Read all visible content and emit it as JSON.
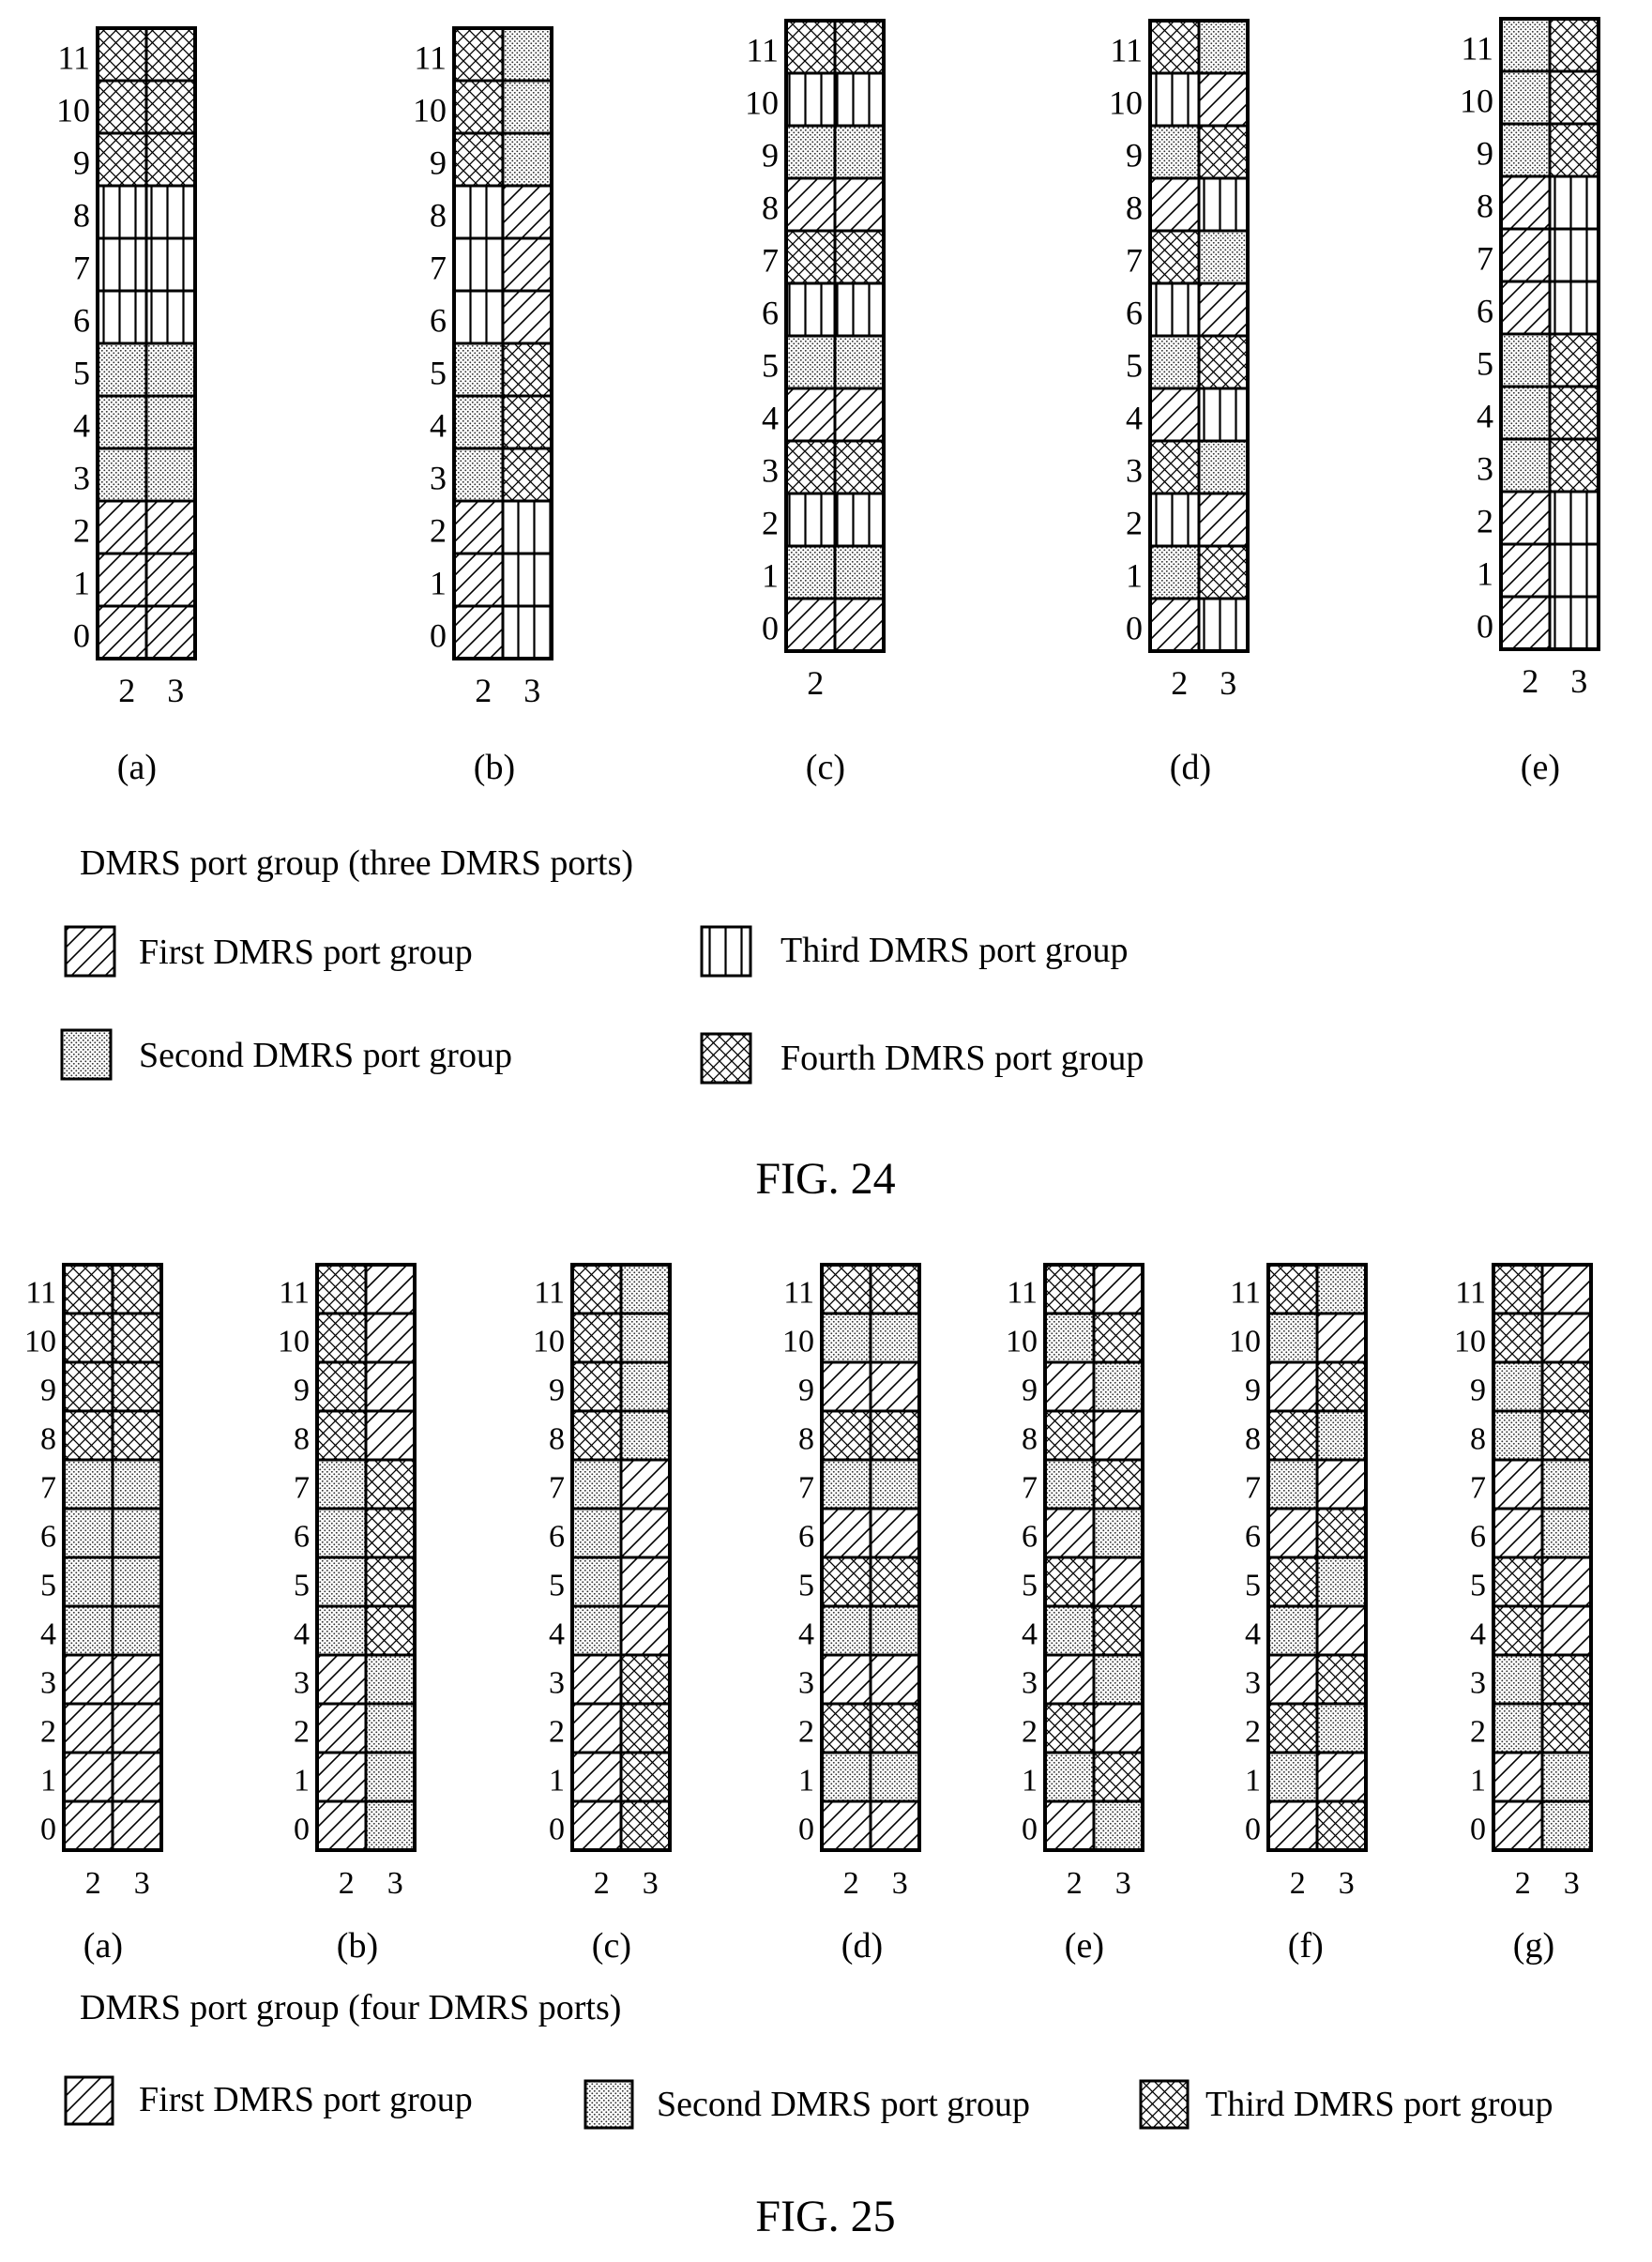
{
  "fig24": {
    "caption": "FIG. 24",
    "section_title": "DMRS port group (three DMRS ports)",
    "legend": [
      {
        "key": "A",
        "label": "First DMRS port group"
      },
      {
        "key": "C",
        "label": "Third DMRS port group"
      },
      {
        "key": "B",
        "label": "Second DMRS port group"
      },
      {
        "key": "D",
        "label": "Fourth DMRS port group"
      }
    ],
    "panels": [
      {
        "label": "(a)",
        "x_labels": [
          "2",
          "3"
        ],
        "col1": [
          "A",
          "A",
          "A",
          "B",
          "B",
          "B",
          "C",
          "C",
          "C",
          "D",
          "D",
          "D"
        ],
        "col2": [
          "A",
          "A",
          "A",
          "B",
          "B",
          "B",
          "C",
          "C",
          "C",
          "D",
          "D",
          "D"
        ]
      },
      {
        "label": "(b)",
        "x_labels": [
          "2",
          "3"
        ],
        "col1": [
          "A",
          "A",
          "A",
          "B",
          "B",
          "B",
          "C",
          "C",
          "C",
          "D",
          "D",
          "D"
        ],
        "col2": [
          "C",
          "C",
          "C",
          "D",
          "D",
          "D",
          "A",
          "A",
          "A",
          "B",
          "B",
          "B"
        ]
      },
      {
        "label": "(c)",
        "x_labels": [
          "2"
        ],
        "col1": [
          "A",
          "B",
          "C",
          "D",
          "A",
          "B",
          "C",
          "D",
          "A",
          "B",
          "C",
          "D"
        ],
        "col2": [
          "A",
          "B",
          "C",
          "D",
          "A",
          "B",
          "C",
          "D",
          "A",
          "B",
          "C",
          "D"
        ]
      },
      {
        "label": "(d)",
        "x_labels": [
          "2",
          "3"
        ],
        "col1": [
          "A",
          "B",
          "C",
          "D",
          "A",
          "B",
          "C",
          "D",
          "A",
          "B",
          "C",
          "D"
        ],
        "col2": [
          "C",
          "D",
          "A",
          "B",
          "C",
          "D",
          "A",
          "B",
          "C",
          "D",
          "A",
          "B"
        ]
      },
      {
        "label": "(e)",
        "x_labels": [
          "2",
          "3"
        ],
        "col1": [
          "A",
          "A",
          "A",
          "B",
          "B",
          "B",
          "A",
          "A",
          "A",
          "B",
          "B",
          "B"
        ],
        "col2": [
          "C",
          "C",
          "C",
          "D",
          "D",
          "D",
          "C",
          "C",
          "C",
          "D",
          "D",
          "D"
        ]
      }
    ]
  },
  "fig25": {
    "caption": "FIG. 25",
    "section_title": "DMRS port group (four DMRS ports)",
    "legend": [
      {
        "key": "A",
        "label": "First DMRS port group"
      },
      {
        "key": "B",
        "label": "Second DMRS port group"
      },
      {
        "key": "D",
        "label": "Third DMRS port group"
      }
    ],
    "panels": [
      {
        "label": "(a)",
        "x_labels": [
          "2",
          "3"
        ],
        "col1": [
          "A",
          "A",
          "A",
          "A",
          "B",
          "B",
          "B",
          "B",
          "D",
          "D",
          "D",
          "D"
        ],
        "col2": [
          "A",
          "A",
          "A",
          "A",
          "B",
          "B",
          "B",
          "B",
          "D",
          "D",
          "D",
          "D"
        ]
      },
      {
        "label": "(b)",
        "x_labels": [
          "2",
          "3"
        ],
        "col1": [
          "A",
          "A",
          "A",
          "A",
          "B",
          "B",
          "B",
          "B",
          "D",
          "D",
          "D",
          "D"
        ],
        "col2": [
          "B",
          "B",
          "B",
          "B",
          "D",
          "D",
          "D",
          "D",
          "A",
          "A",
          "A",
          "A"
        ]
      },
      {
        "label": "(c)",
        "x_labels": [
          "2",
          "3"
        ],
        "col1": [
          "A",
          "A",
          "A",
          "A",
          "B",
          "B",
          "B",
          "B",
          "D",
          "D",
          "D",
          "D"
        ],
        "col2": [
          "D",
          "D",
          "D",
          "D",
          "A",
          "A",
          "A",
          "A",
          "B",
          "B",
          "B",
          "B"
        ]
      },
      {
        "label": "(d)",
        "x_labels": [
          "2",
          "3"
        ],
        "col1": [
          "A",
          "B",
          "D",
          "A",
          "B",
          "D",
          "A",
          "B",
          "D",
          "A",
          "B",
          "D"
        ],
        "col2": [
          "A",
          "B",
          "D",
          "A",
          "B",
          "D",
          "A",
          "B",
          "D",
          "A",
          "B",
          "D"
        ]
      },
      {
        "label": "(e)",
        "x_labels": [
          "2",
          "3"
        ],
        "col1": [
          "A",
          "B",
          "D",
          "A",
          "B",
          "D",
          "A",
          "B",
          "D",
          "A",
          "B",
          "D"
        ],
        "col2": [
          "B",
          "D",
          "A",
          "B",
          "D",
          "A",
          "B",
          "D",
          "A",
          "B",
          "D",
          "A"
        ]
      },
      {
        "label": "(f)",
        "x_labels": [
          "2",
          "3"
        ],
        "col1": [
          "A",
          "B",
          "D",
          "A",
          "B",
          "D",
          "A",
          "B",
          "D",
          "A",
          "B",
          "D"
        ],
        "col2": [
          "D",
          "A",
          "B",
          "D",
          "A",
          "B",
          "D",
          "A",
          "B",
          "D",
          "A",
          "B"
        ]
      },
      {
        "label": "(g)",
        "x_labels": [
          "2",
          "3"
        ],
        "col1": [
          "A",
          "A",
          "B",
          "B",
          "D",
          "D",
          "A",
          "A",
          "B",
          "B",
          "D",
          "D"
        ],
        "col2": [
          "B",
          "B",
          "D",
          "D",
          "A",
          "A",
          "B",
          "B",
          "D",
          "D",
          "A",
          "A"
        ]
      }
    ]
  }
}
